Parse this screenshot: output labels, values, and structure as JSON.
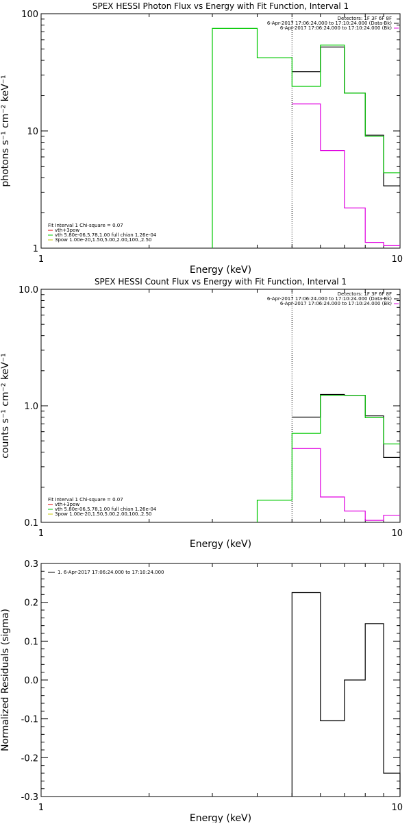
{
  "chart_data": [
    {
      "type": "line",
      "title": "SPEX HESSI Photon Flux vs Energy with Fit Function, Interval 1",
      "xlabel": "Energy (keV)",
      "ylabel": "photons s⁻¹ cm⁻² keV⁻¹",
      "xscale": "log",
      "yscale": "log",
      "xlim": [
        1,
        10
      ],
      "ylim": [
        1,
        100
      ],
      "xticks": [
        {
          "v": 1,
          "label": "1"
        },
        {
          "v": 10,
          "label": "10"
        }
      ],
      "yticks": [
        {
          "v": 1,
          "label": "1"
        },
        {
          "v": 10,
          "label": "10"
        },
        {
          "v": 100,
          "label": "100"
        }
      ],
      "vline": 5.0,
      "legend_top_right": [
        {
          "text": "Detectors: 1F 3F 6F 8F",
          "color": ""
        },
        {
          "text": "6-Apr-2017 17:06:24.000 to 17:10:24.000 (Data-Bk)",
          "color": "#000000"
        },
        {
          "text": "6-Apr-2017 17:06:24.000 to 17:10:24.000 (Bk)",
          "color": "#e000e0"
        }
      ],
      "legend_bottom_left": [
        {
          "text": "Fit Interval 1    Chi-square = 0.07",
          "color": ""
        },
        {
          "text": "vth+3pow",
          "color": "#e00000"
        },
        {
          "text": "vth 5.80e-06,5.78,1.00   full chian 1.26e-04",
          "color": "#00c800"
        },
        {
          "text": "3pow 1.00e-20,1.50,5.00,2.00,100.,2.50",
          "color": "#c8c800"
        }
      ],
      "series": [
        {
          "color": "#000000",
          "edges": [
            5,
            6,
            7,
            8,
            9,
            10
          ],
          "values": [
            32,
            52,
            21,
            9.2,
            3.4
          ]
        },
        {
          "color": "#e000e0",
          "edges": [
            5,
            6,
            7,
            8,
            9,
            10
          ],
          "values": [
            17,
            6.8,
            2.2,
            1.12,
            1.05
          ]
        },
        {
          "color": "#00c800",
          "start_value": 1,
          "edges": [
            3,
            4,
            5,
            6,
            7,
            8,
            9,
            10
          ],
          "values": [
            75,
            42,
            24,
            54,
            21,
            9,
            4.4
          ]
        }
      ]
    },
    {
      "type": "line",
      "title": "SPEX HESSI Count Flux vs Energy with Fit Function, Interval 1",
      "xlabel": "Energy (keV)",
      "ylabel": "counts s⁻¹ cm⁻² keV⁻¹",
      "xscale": "log",
      "yscale": "log",
      "xlim": [
        1,
        10
      ],
      "ylim": [
        0.1,
        10
      ],
      "xticks": [
        {
          "v": 1,
          "label": "1"
        },
        {
          "v": 10,
          "label": "10"
        }
      ],
      "yticks": [
        {
          "v": 0.1,
          "label": "0.1"
        },
        {
          "v": 1,
          "label": "1.0"
        },
        {
          "v": 10,
          "label": "10.0"
        }
      ],
      "vline": 5.0,
      "legend_top_right": [
        {
          "text": "Detectors: 1F 3F 6F 8F",
          "color": ""
        },
        {
          "text": "6-Apr-2017 17:06:24.000 to 17:10:24.000 (Data-Bk)",
          "color": "#000000"
        },
        {
          "text": "6-Apr-2017 17:06:24.000 to 17:10:24.000 (Bk)",
          "color": "#e000e0"
        }
      ],
      "legend_bottom_left": [
        {
          "text": "Fit Interval 1    Chi-square = 0.07",
          "color": ""
        },
        {
          "text": "vth+3pow",
          "color": "#e00000"
        },
        {
          "text": "vth 5.80e-06,5.78,1.00   full chian 1.26e-04",
          "color": "#00c800"
        },
        {
          "text": "3pow 1.00e-20,1.50,5.00,2.00,100.,2.50",
          "color": "#c8c800"
        }
      ],
      "series": [
        {
          "color": "#000000",
          "edges": [
            5,
            6,
            7,
            8,
            9,
            10
          ],
          "values": [
            0.8,
            1.25,
            1.23,
            0.82,
            0.36
          ]
        },
        {
          "color": "#e000e0",
          "edges": [
            5,
            6,
            7,
            8,
            9,
            10
          ],
          "values": [
            0.43,
            0.165,
            0.125,
            0.104,
            0.115
          ]
        },
        {
          "color": "#00c800",
          "start_value": 0.1,
          "edges": [
            4,
            5,
            6,
            7,
            8,
            9,
            10
          ],
          "values": [
            0.155,
            0.58,
            1.23,
            1.23,
            0.79,
            0.47
          ]
        }
      ]
    },
    {
      "type": "line",
      "title": "",
      "xlabel": "Energy (keV)",
      "ylabel": "Normalized Residuals (sigma)",
      "xscale": "log",
      "yscale": "linear",
      "xlim": [
        1,
        10
      ],
      "ylim": [
        -0.3,
        0.3
      ],
      "xticks": [
        {
          "v": 1,
          "label": "1"
        },
        {
          "v": 10,
          "label": "10"
        }
      ],
      "yticks": [
        {
          "v": -0.3,
          "label": "-0.3"
        },
        {
          "v": -0.2,
          "label": "-0.2"
        },
        {
          "v": -0.1,
          "label": "-0.1"
        },
        {
          "v": 0.0,
          "label": "0.0"
        },
        {
          "v": 0.1,
          "label": "0.1"
        },
        {
          "v": 0.2,
          "label": "0.2"
        },
        {
          "v": 0.3,
          "label": "0.3"
        }
      ],
      "legend_top_left": [
        {
          "text": "1.  6-Apr-2017 17:06:24.000 to 17:10:24.000",
          "color": "#000000"
        }
      ],
      "series": [
        {
          "color": "#000000",
          "start_value": -0.3,
          "end_value": -0.3,
          "edges": [
            5,
            6,
            7,
            8,
            9,
            10
          ],
          "values": [
            0.225,
            -0.105,
            0.0,
            0.145,
            -0.24
          ]
        }
      ]
    }
  ]
}
